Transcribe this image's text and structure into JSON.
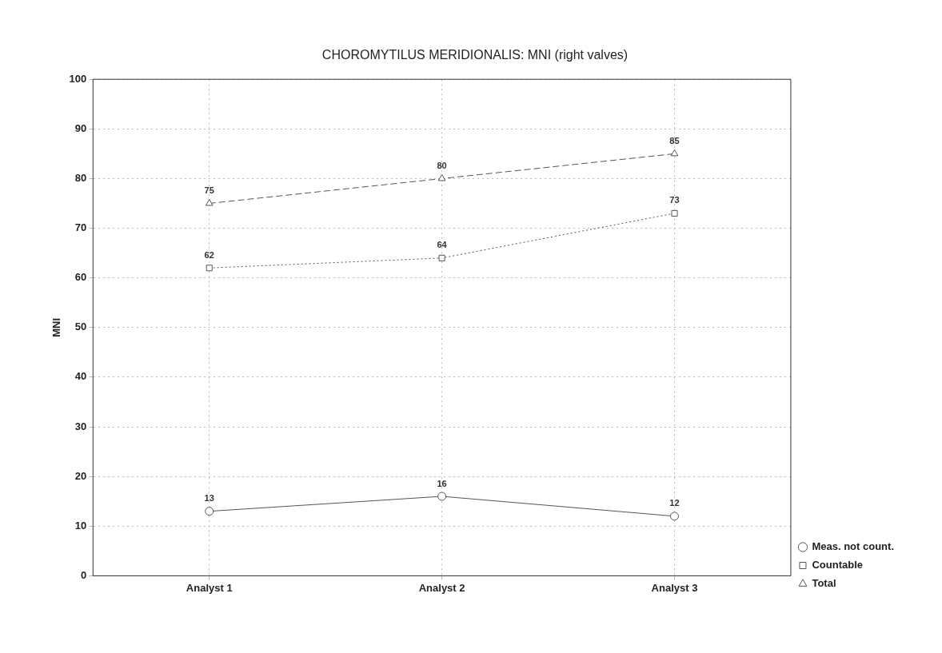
{
  "chart_data": {
    "type": "line",
    "title": "CHOROMYTILUS MERIDIONALIS: MNI (right valves)",
    "ylabel": "MNI",
    "categories": [
      "Analyst 1",
      "Analyst 2",
      "Analyst 3"
    ],
    "series": [
      {
        "name": "Meas. not count.",
        "color": "#555555",
        "values": [
          13,
          16,
          12
        ],
        "marker": "circle",
        "line_style": "solid"
      },
      {
        "name": "Countable",
        "color": "#555555",
        "values": [
          62,
          64,
          73
        ],
        "marker": "square",
        "line_style": "dotted"
      },
      {
        "name": "Total",
        "color": "#555555",
        "values": [
          75,
          80,
          85
        ],
        "marker": "triangle",
        "line_style": "dashed"
      }
    ],
    "ylim": [
      0,
      100
    ],
    "yticks": [
      0,
      10,
      20,
      30,
      40,
      50,
      60,
      70,
      80,
      90,
      100
    ],
    "grid": true,
    "legend": "bottom right",
    "data_labels": true
  }
}
